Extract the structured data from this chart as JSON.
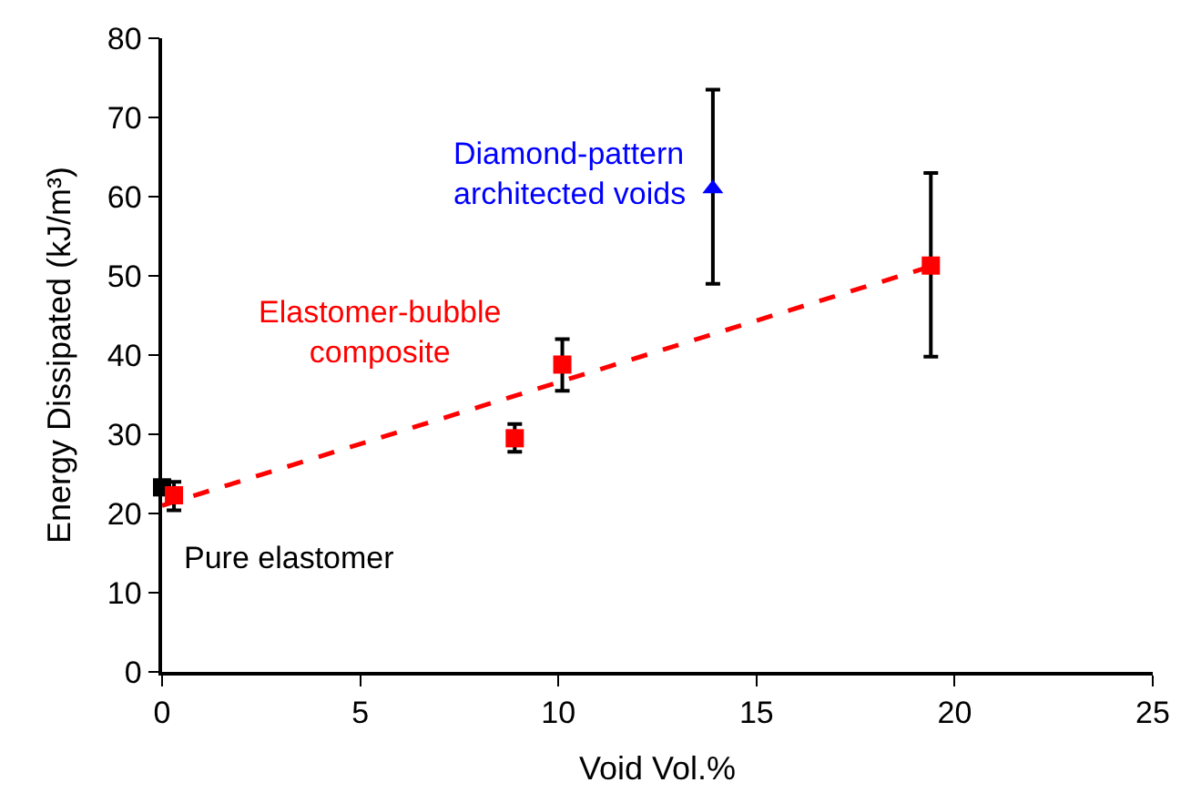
{
  "chart_data": {
    "type": "scatter",
    "xlabel": "Void Vol.%",
    "ylabel": "Energy Dissipated (kJ/m³)",
    "xlim": [
      0,
      25
    ],
    "xticks": [
      0,
      5,
      10,
      15,
      20,
      25
    ],
    "ylim": [
      0,
      80
    ],
    "yticks": [
      0,
      10,
      20,
      30,
      40,
      50,
      60,
      70,
      80
    ],
    "legend": false,
    "series": [
      {
        "type": "line",
        "color": "#ff0000",
        "line_style": "dashed",
        "marker": "none",
        "x": [
          0,
          19.4
        ],
        "values": [
          21,
          51.2
        ]
      },
      {
        "name": "Pure elastomer",
        "color": "#000000",
        "marker": "square",
        "x": [
          0
        ],
        "values": [
          23.3
        ]
      },
      {
        "name": "Elastomer-bubble composite",
        "color": "#ff0000",
        "marker": "square",
        "x": [
          0.3,
          8.9,
          10.1,
          19.4
        ],
        "values": [
          22.3,
          29.5,
          38.8,
          51.3
        ],
        "errors": [
          [
            20.4,
            24
          ],
          [
            27.8,
            31.3
          ],
          [
            35.5,
            42
          ],
          [
            39.8,
            63
          ]
        ]
      },
      {
        "name": "Diamond-pattern architected voids",
        "color": "#0000ff",
        "marker": "triangle",
        "x": [
          13.9
        ],
        "values": [
          61
        ],
        "errors": [
          [
            49,
            73.5
          ]
        ]
      }
    ]
  }
}
